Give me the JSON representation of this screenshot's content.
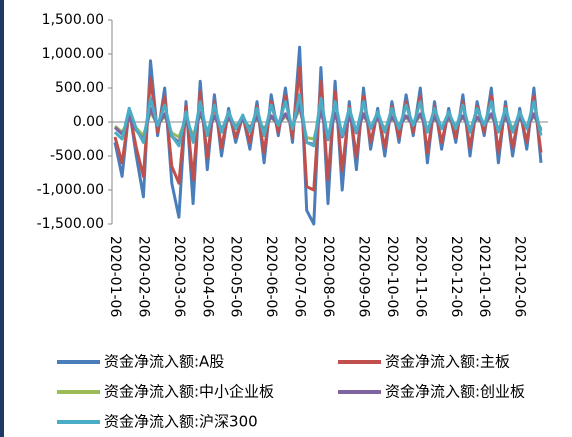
{
  "chart_data": {
    "type": "line",
    "categories": [
      "2020-01-06",
      null,
      null,
      null,
      "2020-02-06",
      null,
      null,
      null,
      null,
      "2020-03-06",
      null,
      null,
      null,
      "2020-04-06",
      null,
      null,
      null,
      "2020-05-06",
      null,
      null,
      null,
      null,
      "2020-06-06",
      null,
      null,
      null,
      "2020-07-06",
      null,
      null,
      null,
      "2020-08-06",
      null,
      null,
      null,
      null,
      "2020-09-06",
      null,
      null,
      null,
      "2020-10-06",
      null,
      null,
      null,
      "2020-11-06",
      null,
      null,
      null,
      null,
      "2020-12-06",
      null,
      null,
      null,
      "2021-01-06",
      null,
      null,
      null,
      null,
      "2021-02-06",
      null,
      null,
      null
    ],
    "ylim": [
      -1500,
      1500
    ],
    "yticks": [
      {
        "value": -1500,
        "label": "-1,500.00"
      },
      {
        "value": -1000,
        "label": "-1,000.00"
      },
      {
        "value": -500,
        "label": "-500.00"
      },
      {
        "value": 0,
        "label": "0.00"
      },
      {
        "value": 500,
        "label": "500.00"
      },
      {
        "value": 1000,
        "label": "1,000.00"
      },
      {
        "value": 1500,
        "label": "1,500.00"
      }
    ],
    "series": [
      {
        "name": "资金净流入额:A股",
        "color": "#4a7ebb",
        "values": [
          -300,
          -800,
          200,
          -500,
          -1100,
          900,
          -200,
          500,
          -900,
          -1400,
          300,
          -1200,
          600,
          -700,
          400,
          -500,
          200,
          -300,
          100,
          -400,
          300,
          -600,
          400,
          -200,
          500,
          -300,
          1100,
          -1300,
          -1500,
          800,
          -1200,
          600,
          -1000,
          300,
          -700,
          500,
          -400,
          200,
          -500,
          300,
          -300,
          400,
          -200,
          500,
          -600,
          300,
          -400,
          200,
          -300,
          400,
          -500,
          300,
          -200,
          500,
          -600,
          300,
          -500,
          200,
          -400,
          500,
          -600
        ]
      },
      {
        "name": "资金净流入额:主板",
        "color": "#c0504d",
        "values": [
          -220,
          -600,
          150,
          -380,
          -800,
          650,
          -150,
          380,
          -650,
          -900,
          230,
          -850,
          450,
          -520,
          300,
          -380,
          150,
          -230,
          80,
          -300,
          230,
          -450,
          300,
          -150,
          380,
          -230,
          800,
          -950,
          -1000,
          600,
          -850,
          450,
          -720,
          230,
          -520,
          380,
          -300,
          150,
          -380,
          230,
          -230,
          300,
          -150,
          380,
          -450,
          230,
          -300,
          150,
          -230,
          300,
          -380,
          230,
          -150,
          380,
          -450,
          230,
          -380,
          150,
          -300,
          380,
          -450
        ]
      },
      {
        "name": "资金净流入额:中小企业板",
        "color": "#9bbb59",
        "values": [
          -60,
          -150,
          40,
          -90,
          -200,
          150,
          -40,
          90,
          -160,
          -220,
          50,
          -200,
          110,
          -120,
          70,
          -90,
          40,
          -50,
          20,
          -70,
          50,
          -100,
          70,
          -40,
          90,
          -50,
          200,
          -230,
          -250,
          140,
          -200,
          100,
          -170,
          50,
          -120,
          90,
          -70,
          40,
          -90,
          50,
          -50,
          70,
          -40,
          90,
          -100,
          50,
          -70,
          40,
          -50,
          70,
          -90,
          50,
          -40,
          90,
          -100,
          50,
          -90,
          40,
          -70,
          90,
          -100
        ]
      },
      {
        "name": "资金净流入额:创业板",
        "color": "#8064a2",
        "values": [
          -80,
          -180,
          60,
          -120,
          -260,
          200,
          -60,
          120,
          -210,
          -300,
          70,
          -260,
          140,
          -160,
          90,
          -120,
          60,
          -70,
          30,
          -90,
          70,
          -130,
          90,
          -50,
          120,
          -70,
          260,
          -300,
          -330,
          180,
          -260,
          130,
          -220,
          70,
          -160,
          120,
          -90,
          60,
          -120,
          70,
          -70,
          90,
          -50,
          120,
          -130,
          70,
          -90,
          60,
          -70,
          90,
          -120,
          70,
          -50,
          120,
          -130,
          70,
          -120,
          60,
          -90,
          120,
          -130
        ]
      },
      {
        "name": "资金净流入额:沪深300",
        "color": "#4bacc6",
        "values": [
          -150,
          -250,
          200,
          -100,
          -300,
          350,
          -50,
          250,
          -200,
          -350,
          150,
          -300,
          300,
          -200,
          250,
          -150,
          150,
          -100,
          100,
          -150,
          200,
          -200,
          250,
          -50,
          300,
          -100,
          400,
          -300,
          -350,
          350,
          -250,
          300,
          -200,
          200,
          -150,
          300,
          -100,
          150,
          -150,
          200,
          -100,
          250,
          -50,
          300,
          -150,
          200,
          -100,
          150,
          -100,
          250,
          -150,
          200,
          -50,
          300,
          -150,
          200,
          -150,
          150,
          -100,
          300,
          -200
        ]
      }
    ]
  }
}
